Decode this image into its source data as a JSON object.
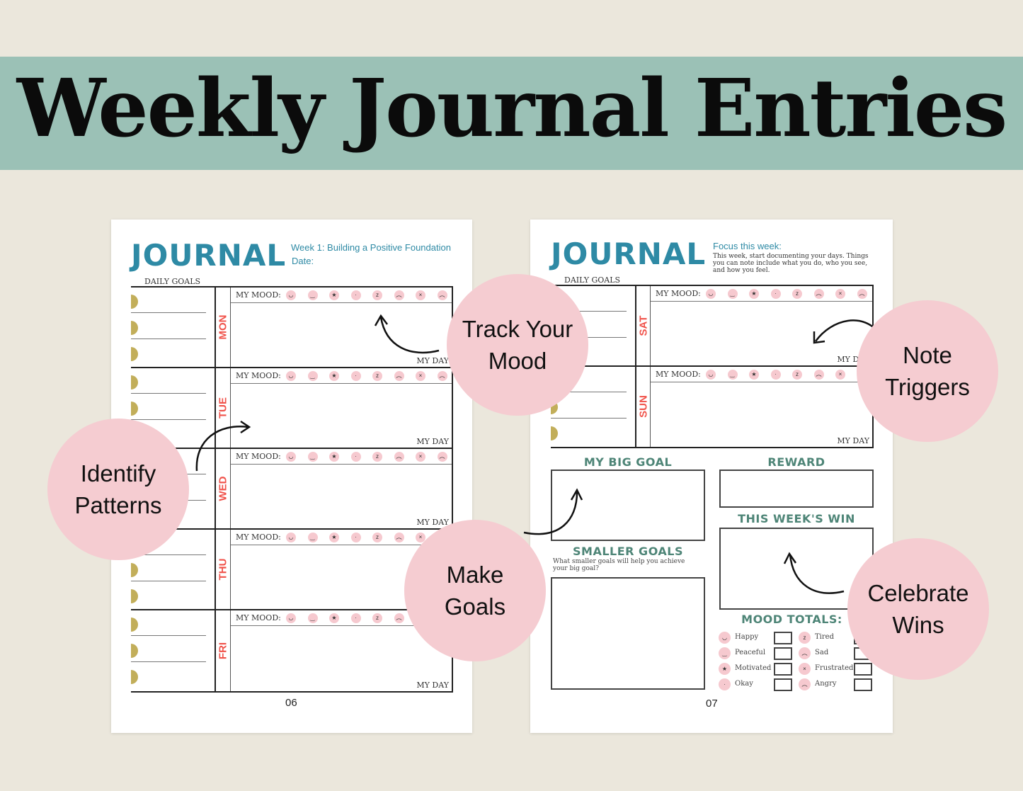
{
  "banner": {
    "title": "Weekly Journal Entries",
    "color": "#9bc1b6"
  },
  "left_page": {
    "title": "JOURNAL",
    "subtitle": "Week 1: Building a Positive Foundation",
    "date_label": "Date:",
    "daily_goals_label": "DAILY GOALS",
    "page_number": "06",
    "days": [
      {
        "label": "MON"
      },
      {
        "label": "TUE"
      },
      {
        "label": "WED"
      },
      {
        "label": "THU"
      },
      {
        "label": "FRI"
      }
    ]
  },
  "right_page": {
    "title": "JOURNAL",
    "focus_label": "Focus this week:",
    "focus_text": "This week, start documenting your days. Things you can note include what you do, who you see, and how you feel.",
    "daily_goals_label": "DAILY GOALS",
    "page_number": "07",
    "days": [
      {
        "label": "SAT"
      },
      {
        "label": "SUN"
      }
    ],
    "big_goal_label": "MY BIG GOAL",
    "reward_label": "REWARD",
    "win_label": "THIS WEEK'S WIN",
    "smaller_goals_label": "SMALLER GOALS",
    "smaller_goals_prompt": "What smaller goals will help you achieve your big goal?",
    "mood_totals_label": "MOOD TOTALS:",
    "moods_left": [
      "Happy",
      "Peaceful",
      "Motivated",
      "Okay"
    ],
    "moods_right": [
      "Tired",
      "Sad",
      "Frustrated",
      "Angry"
    ]
  },
  "mood_label": "MY MOOD:",
  "my_day_label": "MY DAY",
  "mood_faces": [
    "happy",
    "peaceful",
    "motivated",
    "okay",
    "tired",
    "sad",
    "frustrated",
    "angry"
  ],
  "callouts": [
    "Track Your\nMood",
    "Note\nTriggers",
    "Identify\nPatterns",
    "Make\nGoals",
    "Celebrate\nWins"
  ],
  "colors": {
    "accent": "#2e8aa5",
    "day": "#f0524a",
    "gold": "#c2ae5a",
    "circle": "#f5ccd1",
    "heading": "#4e8577"
  }
}
